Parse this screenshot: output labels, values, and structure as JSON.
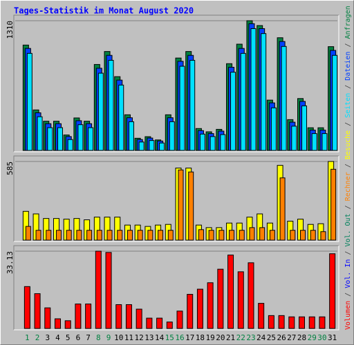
{
  "title": "Tages-Statistik im Monat August 2020",
  "legend_separator": " / ",
  "chart_data": [
    {
      "type": "bar",
      "ylim": [
        0,
        1310
      ],
      "yticks": [
        1310
      ],
      "series": [
        {
          "name": "Anfragen",
          "color": "#008040",
          "values": [
            1064,
            409,
            295,
            295,
            156,
            328,
            295,
            868,
            999,
            745,
            360,
            123,
            139,
            106,
            360,
            933,
            999,
            221,
            188,
            213,
            876,
            1073,
            1310,
            1261,
            508,
            1138,
            311,
            524,
            229,
            229,
            1048
          ]
        },
        {
          "name": "Dateien",
          "color": "#0040FF",
          "values": [
            1030,
            380,
            270,
            270,
            140,
            300,
            270,
            830,
            960,
            710,
            330,
            110,
            125,
            95,
            330,
            900,
            960,
            200,
            170,
            195,
            840,
            1030,
            1280,
            1230,
            480,
            1100,
            285,
            495,
            205,
            205,
            1010
          ]
        },
        {
          "name": "Seiten",
          "color": "#00E0FF",
          "values": [
            980,
            340,
            230,
            230,
            110,
            260,
            230,
            780,
            910,
            660,
            290,
            85,
            100,
            75,
            290,
            850,
            910,
            165,
            140,
            160,
            790,
            980,
            1230,
            1180,
            430,
            1050,
            245,
            450,
            170,
            170,
            960
          ]
        }
      ]
    },
    {
      "type": "bar",
      "ylim": [
        0,
        585
      ],
      "yticks": [
        585
      ],
      "series": [
        {
          "name": "Besuche",
          "color": "#FFFF00",
          "values": [
            214,
            195,
            161,
            161,
            156,
            161,
            151,
            171,
            171,
            171,
            112,
            112,
            102,
            112,
            117,
            536,
            536,
            112,
            93,
            93,
            127,
            127,
            171,
            195,
            127,
            556,
            141,
            156,
            117,
            122,
            585
          ]
        },
        {
          "name": "Rechner",
          "color": "#FF8000",
          "values": [
            102,
            73,
            73,
            73,
            73,
            73,
            73,
            73,
            73,
            73,
            73,
            73,
            73,
            73,
            73,
            522,
            507,
            78,
            73,
            73,
            73,
            73,
            93,
            93,
            73,
            463,
            73,
            73,
            73,
            63,
            527
          ]
        }
      ]
    },
    {
      "type": "bar",
      "ylim": [
        0,
        33.13
      ],
      "yticks": [
        33.13
      ],
      "categories": [
        "1",
        "2",
        "3",
        "4",
        "5",
        "6",
        "7",
        "8",
        "9",
        "10",
        "11",
        "12",
        "13",
        "14",
        "15",
        "16",
        "17",
        "18",
        "19",
        "20",
        "21",
        "22",
        "23",
        "24",
        "25",
        "26",
        "27",
        "28",
        "29",
        "30",
        "31"
      ],
      "category_colors": [
        "#008040",
        "#008040",
        "#000000",
        "#000000",
        "#000000",
        "#000000",
        "#000000",
        "#008040",
        "#008040",
        "#000000",
        "#000000",
        "#000000",
        "#000000",
        "#000000",
        "#008040",
        "#008040",
        "#000000",
        "#000000",
        "#000000",
        "#000000",
        "#000000",
        "#008040",
        "#008040",
        "#000000",
        "#000000",
        "#000000",
        "#000000",
        "#000000",
        "#008040",
        "#008040",
        "#000000"
      ],
      "series": [
        {
          "name": "Vol. Out",
          "color": "#00805C"
        },
        {
          "name": "Vol. In",
          "color": "#0000FF"
        },
        {
          "name": "Volumen",
          "color": "#FF0000",
          "values": [
            17.95,
            14.91,
            8.83,
            4.14,
            3.31,
            10.49,
            10.49,
            33.13,
            32.58,
            10.21,
            10.21,
            8.28,
            4.42,
            4.42,
            2.76,
            7.45,
            14.63,
            16.84,
            19.6,
            25.4,
            31.47,
            24.3,
            28.16,
            10.77,
            5.52,
            5.52,
            4.97,
            4.97,
            4.97,
            4.97,
            32.03
          ]
        }
      ]
    }
  ]
}
